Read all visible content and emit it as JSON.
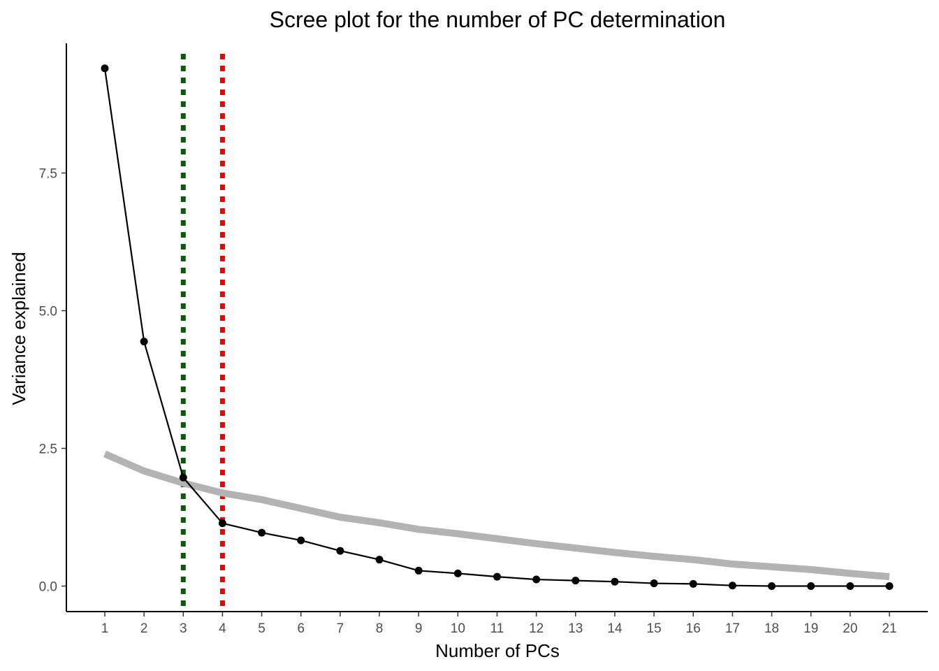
{
  "chart_data": {
    "type": "line",
    "title": "Scree plot for the number of PC determination",
    "xlabel": "Number of PCs",
    "ylabel": "Variance explained",
    "x": [
      1,
      2,
      3,
      4,
      5,
      6,
      7,
      8,
      9,
      10,
      11,
      12,
      13,
      14,
      15,
      16,
      17,
      18,
      19,
      20,
      21
    ],
    "xlim": [
      0,
      22
    ],
    "ylim": [
      -0.45,
      9.75
    ],
    "yticks": [
      0.0,
      2.5,
      5.0,
      7.5
    ],
    "ytick_labels": [
      "0.0",
      "2.5",
      "5.0",
      "7.5"
    ],
    "grid": false,
    "series": [
      {
        "type": "line+points",
        "color": "#000000",
        "values": [
          9.4,
          4.44,
          1.97,
          1.14,
          0.97,
          0.83,
          0.64,
          0.48,
          0.28,
          0.23,
          0.17,
          0.12,
          0.1,
          0.08,
          0.05,
          0.04,
          0.01,
          0.0,
          0.0,
          0.0,
          0.0
        ]
      },
      {
        "type": "line",
        "color": "#b3b3b3",
        "values": [
          2.4,
          2.09,
          1.87,
          1.69,
          1.57,
          1.41,
          1.25,
          1.15,
          1.03,
          0.95,
          0.86,
          0.77,
          0.69,
          0.61,
          0.54,
          0.48,
          0.4,
          0.35,
          0.3,
          0.23,
          0.17
        ]
      }
    ],
    "vlines": [
      {
        "x": 3,
        "color": "#0a5a0a",
        "style": "dotted"
      },
      {
        "x": 4,
        "color": "#ee0000",
        "style": "dotted"
      }
    ]
  }
}
